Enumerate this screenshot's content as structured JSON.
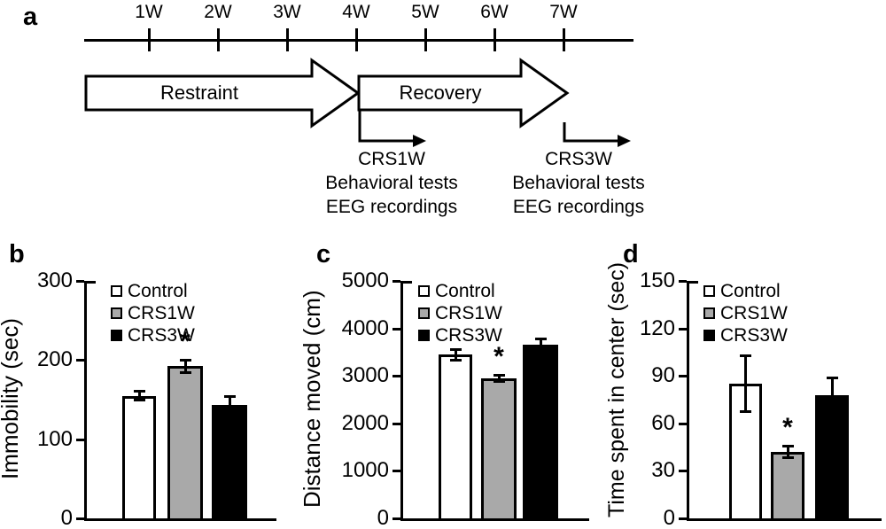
{
  "figure": {
    "panel_labels": {
      "a": "a",
      "b": "b",
      "c": "c",
      "d": "d"
    }
  },
  "timeline": {
    "weeks": [
      "1W",
      "2W",
      "3W",
      "4W",
      "5W",
      "6W",
      "7W"
    ],
    "phases": [
      {
        "label": "Restraint",
        "ends_at_week": "4W"
      },
      {
        "label": "Recovery",
        "from_week": "4W",
        "to_week": "7W"
      }
    ],
    "events": [
      {
        "at_week": "4W",
        "title": "CRS1W",
        "line1": "Behavioral tests",
        "line2": "EEG recordings"
      },
      {
        "at_week": "7W",
        "title": "CRS3W",
        "line1": "Behavioral tests",
        "line2": "EEG recordings"
      }
    ]
  },
  "chart_data": [
    {
      "id": "b",
      "type": "bar",
      "title": "",
      "xlabel": "",
      "ylabel": "Immobility  (sec)",
      "categories": [
        "Control",
        "CRS1W",
        "CRS3W"
      ],
      "values": [
        155,
        192,
        143
      ],
      "errors": [
        6,
        8,
        11
      ],
      "significance": [
        "",
        "*",
        ""
      ],
      "ylim": [
        0,
        300
      ],
      "yticks": [
        0,
        100,
        200,
        300
      ],
      "bar_colors": [
        "#ffffff",
        "#a9a9a9",
        "#000000"
      ],
      "grid": false,
      "legend_position": "top-left-inside"
    },
    {
      "id": "c",
      "type": "bar",
      "title": "",
      "xlabel": "",
      "ylabel": "Distance moved (cm)",
      "categories": [
        "Control",
        "CRS1W",
        "CRS3W"
      ],
      "values": [
        3450,
        2950,
        3650
      ],
      "errors": [
        120,
        80,
        130
      ],
      "significance": [
        "",
        "*",
        ""
      ],
      "ylim": [
        0,
        5000
      ],
      "yticks": [
        0,
        1000,
        2000,
        3000,
        4000,
        5000
      ],
      "bar_colors": [
        "#ffffff",
        "#a9a9a9",
        "#000000"
      ],
      "grid": false,
      "legend_position": "top-left-inside"
    },
    {
      "id": "d",
      "type": "bar",
      "title": "",
      "xlabel": "",
      "ylabel": "Time spent in center (sec)",
      "categories": [
        "Control",
        "CRS1W",
        "CRS3W"
      ],
      "values": [
        85,
        42,
        78
      ],
      "errors": [
        18,
        4,
        11
      ],
      "significance": [
        "",
        "*",
        ""
      ],
      "ylim": [
        0,
        150
      ],
      "yticks": [
        0,
        30,
        60,
        90,
        120,
        150
      ],
      "bar_colors": [
        "#ffffff",
        "#a9a9a9",
        "#000000"
      ],
      "grid": false,
      "legend_position": "top-left-inside"
    }
  ]
}
